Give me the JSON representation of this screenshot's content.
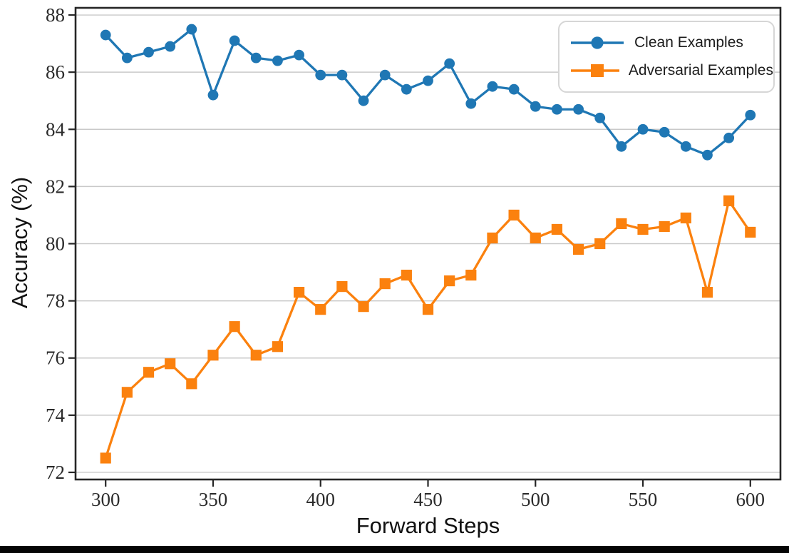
{
  "figure": {
    "background": "#ffffff",
    "bottom_bar_color": "#050505",
    "gridline_color": "#c9c9c9",
    "spine_color": "#262626",
    "tick_label_color": "#2b2b2b"
  },
  "chart_data": {
    "type": "line",
    "title": "",
    "xlabel": "Forward Steps",
    "ylabel": "Accuracy (%)",
    "x": [
      300,
      310,
      320,
      330,
      340,
      350,
      360,
      370,
      380,
      390,
      400,
      410,
      420,
      430,
      440,
      450,
      460,
      470,
      480,
      490,
      500,
      510,
      520,
      530,
      540,
      550,
      560,
      570,
      580,
      590,
      600
    ],
    "series": [
      {
        "name": "Clean Examples",
        "color": "#1f77b4",
        "marker": "circle",
        "values": [
          87.3,
          86.5,
          86.7,
          86.9,
          87.5,
          85.2,
          87.1,
          86.5,
          86.4,
          86.6,
          85.9,
          85.9,
          85.0,
          85.9,
          85.4,
          85.7,
          86.3,
          84.9,
          85.5,
          85.4,
          84.8,
          84.7,
          84.7,
          84.4,
          83.4,
          84.0,
          83.9,
          83.4,
          83.1,
          83.7,
          84.5
        ]
      },
      {
        "name": "Adversarial Examples",
        "color": "#fb810e",
        "marker": "square",
        "values": [
          72.5,
          74.8,
          75.5,
          75.8,
          75.1,
          76.1,
          77.1,
          76.1,
          76.4,
          78.3,
          77.7,
          78.5,
          77.8,
          78.6,
          78.9,
          77.7,
          78.7,
          78.9,
          80.2,
          81.0,
          80.2,
          80.5,
          79.8,
          80.0,
          80.7,
          80.5,
          80.6,
          80.9,
          78.3,
          81.5,
          80.4
        ]
      }
    ],
    "xticks": [
      300,
      350,
      400,
      450,
      500,
      550,
      600
    ],
    "yticks": [
      72,
      74,
      76,
      78,
      80,
      82,
      84,
      86,
      88
    ],
    "xlim": [
      286,
      614
    ],
    "ylim": [
      71.75,
      88.25
    ],
    "grid": "horizontal-only",
    "legend_position": "upper-right"
  }
}
